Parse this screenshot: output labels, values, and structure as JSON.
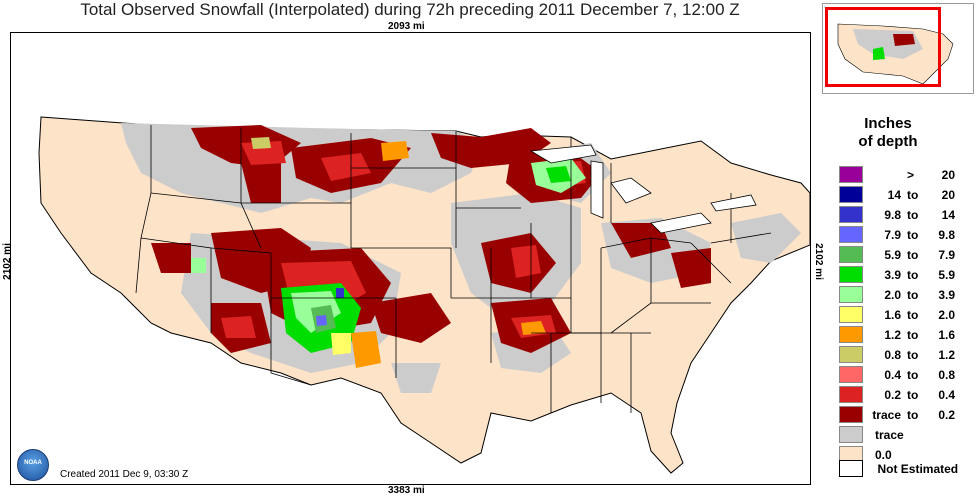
{
  "title": "Total Observed Snowfall (Interpolated) during 72h preceding 2011 December 7, 12:00 Z",
  "distances": {
    "top": "2093 mi",
    "bottom": "3383 mi",
    "left": "2102 mi",
    "right": "2102 mi"
  },
  "created": "Created 2011 Dec 9, 03:30 Z",
  "logo_text": "NOAA",
  "legend": {
    "title_line1": "Inches",
    "title_line2": "of depth",
    "items": [
      {
        "color": "#990099",
        "lo": "",
        "to": ">",
        "hi": "20"
      },
      {
        "color": "#000099",
        "lo": "14",
        "to": "to",
        "hi": "20"
      },
      {
        "color": "#3333cc",
        "lo": "9.8",
        "to": "to",
        "hi": "14"
      },
      {
        "color": "#6666ff",
        "lo": "7.9",
        "to": "to",
        "hi": "9.8"
      },
      {
        "color": "#55bb55",
        "lo": "5.9",
        "to": "to",
        "hi": "7.9"
      },
      {
        "color": "#00dd00",
        "lo": "3.9",
        "to": "to",
        "hi": "5.9"
      },
      {
        "color": "#99ff99",
        "lo": "2.0",
        "to": "to",
        "hi": "3.9"
      },
      {
        "color": "#ffff66",
        "lo": "1.6",
        "to": "to",
        "hi": "2.0"
      },
      {
        "color": "#ff9900",
        "lo": "1.2",
        "to": "to",
        "hi": "1.6"
      },
      {
        "color": "#cccc66",
        "lo": "0.8",
        "to": "to",
        "hi": "1.2"
      },
      {
        "color": "#ff6666",
        "lo": "0.4",
        "to": "to",
        "hi": "0.8"
      },
      {
        "color": "#dd2222",
        "lo": "0.2",
        "to": "to",
        "hi": "0.4"
      },
      {
        "color": "#990000",
        "lo": "trace",
        "to": "to",
        "hi": "0.2"
      },
      {
        "color": "#cccccc",
        "single": "trace"
      },
      {
        "color": "#fde3c8",
        "single": "0.0"
      }
    ],
    "not_estimated": "Not Estimated"
  }
}
